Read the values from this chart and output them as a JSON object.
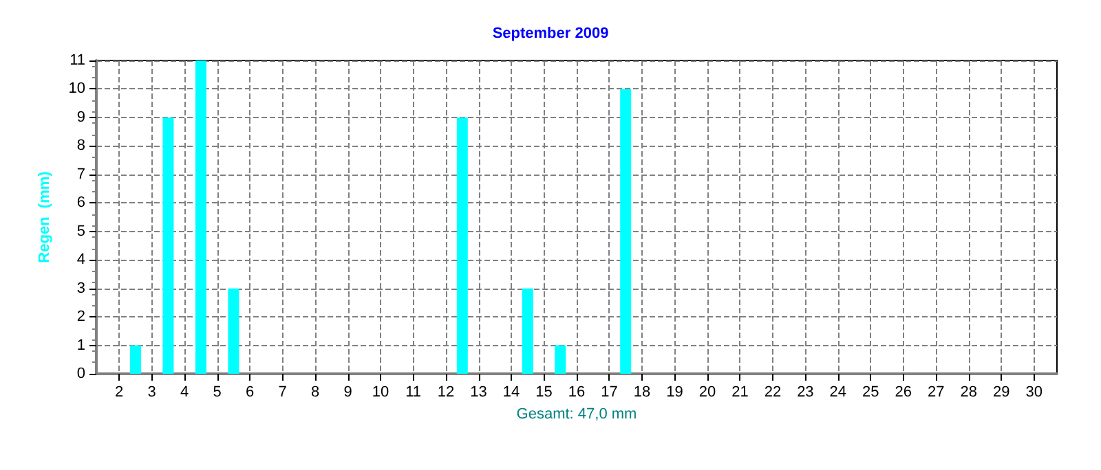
{
  "chart_data": {
    "type": "bar",
    "title": "September 2009",
    "xlabel": "Gesamt: 47,0 mm",
    "ylabel": "Regen  (mm)",
    "x": [
      1.5,
      2.5,
      3.5,
      4.5,
      5.5,
      6.5,
      7.5,
      8.5,
      9.5,
      10.5,
      11.5,
      12.5,
      13.5,
      14.5,
      15.5,
      16.5,
      17.5,
      18.5,
      19.5,
      20.5,
      21.5,
      22.5,
      23.5,
      24.5,
      25.5,
      26.5,
      27.5,
      28.5,
      29.5,
      30.5
    ],
    "values": [
      0,
      1,
      9,
      11,
      3,
      0,
      0,
      0,
      0,
      0,
      0,
      9,
      0,
      3,
      1,
      0,
      10,
      0,
      0,
      0,
      0,
      0,
      0,
      0,
      0,
      0,
      0,
      0,
      0,
      0
    ],
    "color": "#00ffff",
    "xlim": [
      1.3,
      30.7
    ],
    "xticks": [
      2,
      3,
      4,
      5,
      6,
      7,
      8,
      9,
      10,
      11,
      12,
      13,
      14,
      15,
      16,
      17,
      18,
      19,
      20,
      21,
      22,
      23,
      24,
      25,
      26,
      27,
      28,
      29,
      30
    ],
    "ylim": [
      0,
      11
    ],
    "yticks": [
      0,
      1,
      2,
      3,
      4,
      5,
      6,
      7,
      8,
      9,
      10,
      11
    ],
    "grid": true
  }
}
